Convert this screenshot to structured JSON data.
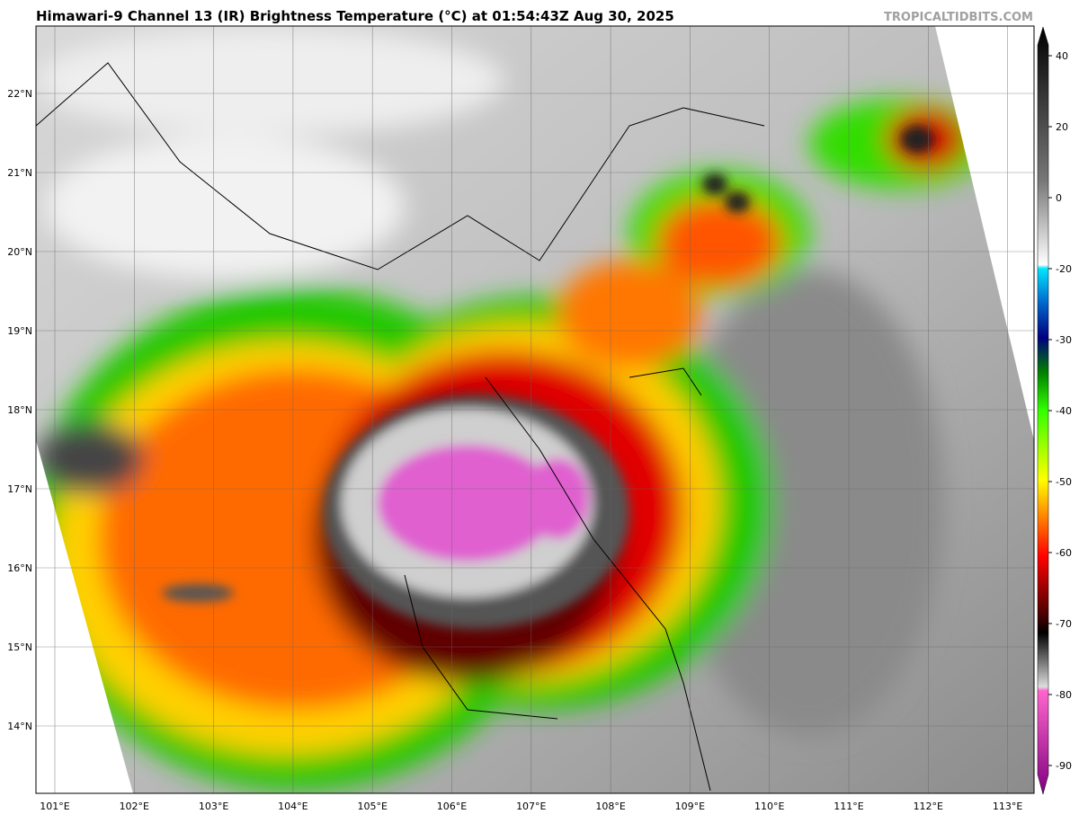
{
  "header": {
    "title": "Himawari-9 Channel 13 (IR) Brightness Temperature (°C) at 01:54:43Z Aug 30, 2025",
    "credit": "TROPICALTIDBITS.COM"
  },
  "map": {
    "lat_labels": [
      "22°N",
      "21°N",
      "20°N",
      "19°N",
      "18°N",
      "17°N",
      "16°N",
      "15°N",
      "14°N"
    ],
    "lon_labels": [
      "101°E",
      "102°E",
      "103°E",
      "104°E",
      "105°E",
      "106°E",
      "107°E",
      "108°E",
      "109°E",
      "110°E",
      "111°E",
      "112°E",
      "113°E"
    ]
  },
  "colorbar": {
    "ticks": [
      40,
      20,
      0,
      -20,
      -30,
      -40,
      -50,
      -60,
      -70,
      -80,
      -90
    ]
  }
}
